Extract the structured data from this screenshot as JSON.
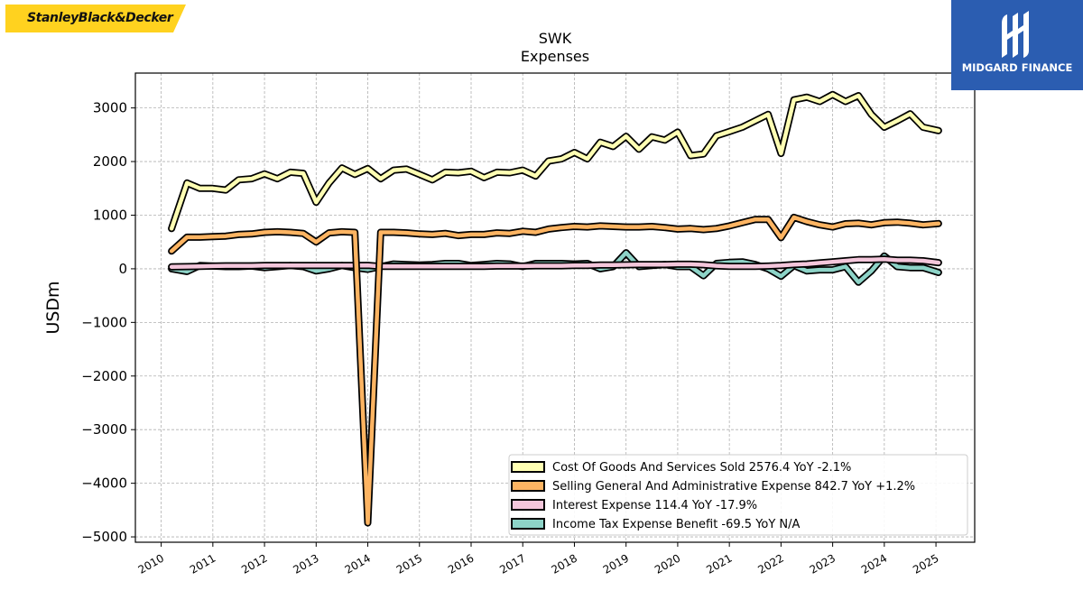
{
  "brand": {
    "company": "StanleyBlack&Decker",
    "company_color": "#ffd21f",
    "publisher": "MIDGARD FINANCE",
    "publisher_color": "#2b5db1"
  },
  "chart_data": {
    "type": "line",
    "title": "SWK",
    "subtitle": "Expenses",
    "xlabel": "",
    "ylabel": "USDm",
    "xlim": [
      2009.5,
      2025.75
    ],
    "ylim": [
      -5100,
      3650
    ],
    "grid": true,
    "legend_position": "lower-right",
    "x_ticks": [
      2010,
      2011,
      2012,
      2013,
      2014,
      2015,
      2016,
      2017,
      2018,
      2019,
      2020,
      2021,
      2022,
      2023,
      2024,
      2025
    ],
    "y_ticks": [
      3000,
      2000,
      1000,
      0,
      -1000,
      -2000,
      -3000,
      -4000,
      -5000
    ],
    "y_tick_labels": [
      "3000",
      "2000",
      "1000",
      "0",
      "−1000",
      "−2000",
      "−3000",
      "−4000",
      "−5000"
    ],
    "x": [
      2010.2,
      2010.5,
      2010.75,
      2011.0,
      2011.25,
      2011.5,
      2011.75,
      2012.0,
      2012.25,
      2012.5,
      2012.75,
      2013.0,
      2013.25,
      2013.5,
      2013.75,
      2014.0,
      2014.25,
      2014.5,
      2014.75,
      2015.0,
      2015.25,
      2015.5,
      2015.75,
      2016.0,
      2016.25,
      2016.5,
      2016.75,
      2017.0,
      2017.25,
      2017.5,
      2017.75,
      2018.0,
      2018.25,
      2018.5,
      2018.75,
      2019.0,
      2019.25,
      2019.5,
      2019.75,
      2020.0,
      2020.25,
      2020.5,
      2020.75,
      2021.0,
      2021.25,
      2021.5,
      2021.75,
      2022.0,
      2022.25,
      2022.5,
      2022.75,
      2023.0,
      2023.25,
      2023.5,
      2023.75,
      2024.0,
      2024.25,
      2024.5,
      2024.75,
      2025.05
    ],
    "series": [
      {
        "name": "Cost Of Goods And Services Sold",
        "legend": "Cost Of Goods And Services Sold  2576.4 YoY -2.1%",
        "color": "#ffffb3",
        "values": [
          750,
          1600,
          1500,
          1500,
          1470,
          1660,
          1680,
          1770,
          1680,
          1800,
          1780,
          1240,
          1600,
          1880,
          1760,
          1870,
          1680,
          1840,
          1860,
          1760,
          1660,
          1800,
          1790,
          1820,
          1700,
          1800,
          1790,
          1840,
          1730,
          2010,
          2050,
          2170,
          2050,
          2360,
          2280,
          2470,
          2230,
          2460,
          2400,
          2550,
          2110,
          2140,
          2480,
          2560,
          2640,
          2760,
          2880,
          2150,
          3150,
          3200,
          3120,
          3250,
          3120,
          3230,
          2880,
          2640,
          2760,
          2890,
          2640,
          2576.4
        ]
      },
      {
        "name": "Selling General And Administrative Expense",
        "legend": "Selling General And Administrative Expense  842.7 YoY +1.2%",
        "color": "#fdb462",
        "values": [
          330,
          590,
          590,
          600,
          610,
          640,
          650,
          680,
          690,
          680,
          660,
          500,
          670,
          690,
          680,
          -4740,
          680,
          680,
          670,
          650,
          640,
          660,
          620,
          640,
          640,
          670,
          660,
          700,
          680,
          740,
          770,
          790,
          780,
          800,
          790,
          780,
          780,
          790,
          770,
          740,
          750,
          730,
          750,
          800,
          860,
          920,
          920,
          580,
          960,
          880,
          820,
          780,
          840,
          850,
          820,
          860,
          870,
          850,
          820,
          842.7
        ]
      },
      {
        "name": "Interest Expense",
        "legend": "Interest Expense  114.4 YoY -17.9%",
        "color": "#f4c6db",
        "values": [
          35,
          40,
          45,
          50,
          55,
          55,
          55,
          60,
          60,
          60,
          60,
          60,
          60,
          60,
          60,
          65,
          45,
          45,
          45,
          45,
          45,
          45,
          45,
          45,
          45,
          50,
          50,
          50,
          55,
          55,
          55,
          60,
          60,
          70,
          70,
          75,
          80,
          80,
          80,
          85,
          85,
          75,
          55,
          45,
          45,
          45,
          50,
          60,
          80,
          90,
          110,
          130,
          150,
          170,
          170,
          180,
          160,
          160,
          150,
          114.4
        ]
      },
      {
        "name": "Income Tax Expense Benefit",
        "legend": "Income Tax Expense Benefit  -69.5 YoY N/A",
        "color": "#8dd3c7",
        "values": [
          0,
          -50,
          60,
          50,
          40,
          40,
          50,
          20,
          40,
          60,
          40,
          -40,
          0,
          60,
          20,
          -10,
          40,
          90,
          80,
          70,
          80,
          100,
          100,
          60,
          80,
          100,
          90,
          40,
          100,
          100,
          100,
          90,
          100,
          0,
          40,
          300,
          40,
          60,
          80,
          40,
          40,
          -130,
          100,
          120,
          130,
          80,
          0,
          -140,
          60,
          -40,
          -20,
          -20,
          40,
          -250,
          -40,
          240,
          40,
          20,
          20,
          -69.5
        ]
      }
    ]
  }
}
